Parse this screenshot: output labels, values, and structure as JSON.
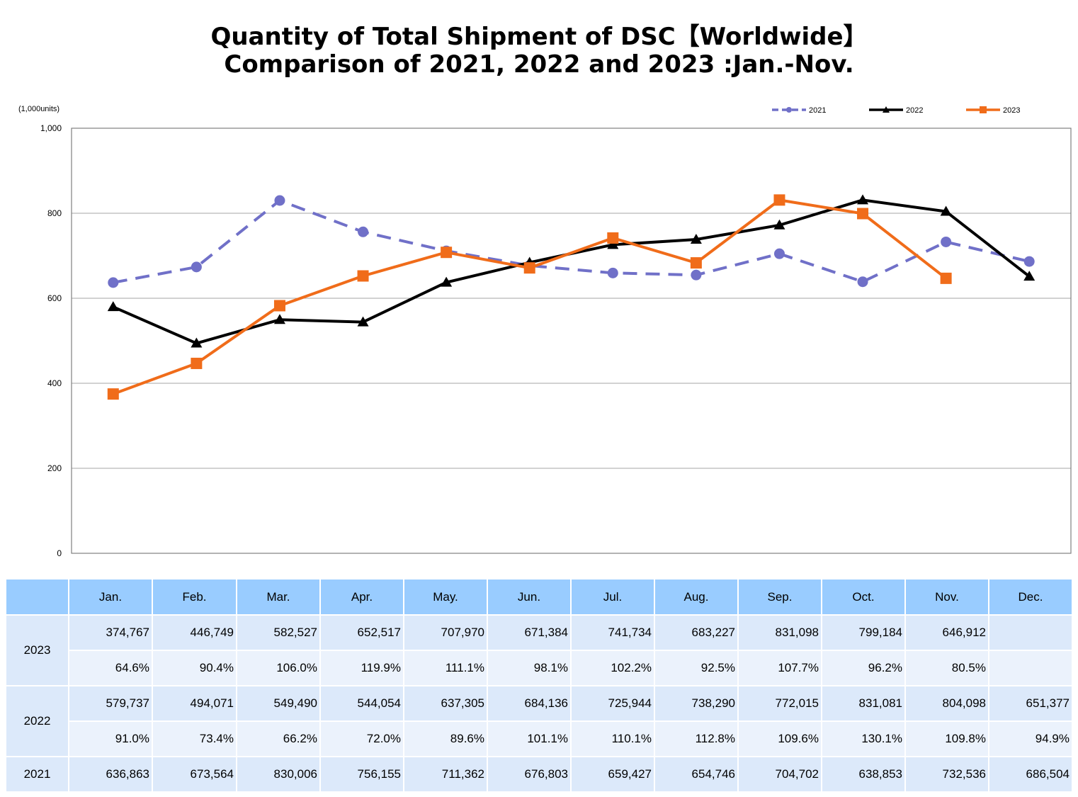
{
  "title_line1": "Quantity of Total Shipment of DSC【Worldwide】",
  "title_line2": "Comparison of 2021, 2022 and 2023 :Jan.-Nov.",
  "chart_data": {
    "type": "line",
    "unit_label": "(1,000units)",
    "ylim": [
      0,
      1000
    ],
    "y_ticks": [
      "0",
      "200",
      "400",
      "600",
      "800",
      "1,000"
    ],
    "y_tick_values": [
      0,
      200,
      400,
      600,
      800,
      1000
    ],
    "categories": [
      "Jan.",
      "Feb.",
      "Mar.",
      "Apr.",
      "May.",
      "Jun.",
      "Jul.",
      "Aug.",
      "Sep.",
      "Oct.",
      "Nov.",
      "Dec."
    ],
    "grid": true,
    "legend_position": "top-right",
    "series": [
      {
        "name": "2021",
        "color": "#7070c8",
        "marker": "circle",
        "dash": true,
        "values": [
          636.863,
          673.564,
          830.006,
          756.155,
          711.362,
          676.803,
          659.427,
          654.746,
          704.702,
          638.853,
          732.536,
          686.504
        ]
      },
      {
        "name": "2022",
        "color": "#000000",
        "marker": "triangle",
        "dash": false,
        "values": [
          579.737,
          494.071,
          549.49,
          544.054,
          637.305,
          684.136,
          725.944,
          738.29,
          772.015,
          831.081,
          804.098,
          651.377
        ]
      },
      {
        "name": "2023",
        "color": "#f06c1a",
        "marker": "square",
        "dash": false,
        "values": [
          374.767,
          446.749,
          582.527,
          652.517,
          707.97,
          671.384,
          741.734,
          683.227,
          831.098,
          799.184,
          646.912,
          null
        ]
      }
    ]
  },
  "table": {
    "header": [
      "",
      "Jan.",
      "Feb.",
      "Mar.",
      "Apr.",
      "May.",
      "Jun.",
      "Jul.",
      "Aug.",
      "Sep.",
      "Oct.",
      "Nov.",
      "Dec."
    ],
    "groups": [
      {
        "year": "2023",
        "rows": [
          [
            "374,767",
            "446,749",
            "582,527",
            "652,517",
            "707,970",
            "671,384",
            "741,734",
            "683,227",
            "831,098",
            "799,184",
            "646,912",
            ""
          ],
          [
            "64.6%",
            "90.4%",
            "106.0%",
            "119.9%",
            "111.1%",
            "98.1%",
            "102.2%",
            "92.5%",
            "107.7%",
            "96.2%",
            "80.5%",
            ""
          ]
        ]
      },
      {
        "year": "2022",
        "rows": [
          [
            "579,737",
            "494,071",
            "549,490",
            "544,054",
            "637,305",
            "684,136",
            "725,944",
            "738,290",
            "772,015",
            "831,081",
            "804,098",
            "651,377"
          ],
          [
            "91.0%",
            "73.4%",
            "66.2%",
            "72.0%",
            "89.6%",
            "101.1%",
            "110.1%",
            "112.8%",
            "109.6%",
            "130.1%",
            "109.8%",
            "94.9%"
          ]
        ]
      },
      {
        "year": "2021",
        "rows": [
          [
            "636,863",
            "673,564",
            "830,006",
            "756,155",
            "711,362",
            "676,803",
            "659,427",
            "654,746",
            "704,702",
            "638,853",
            "732,536",
            "686,504"
          ]
        ]
      }
    ]
  }
}
